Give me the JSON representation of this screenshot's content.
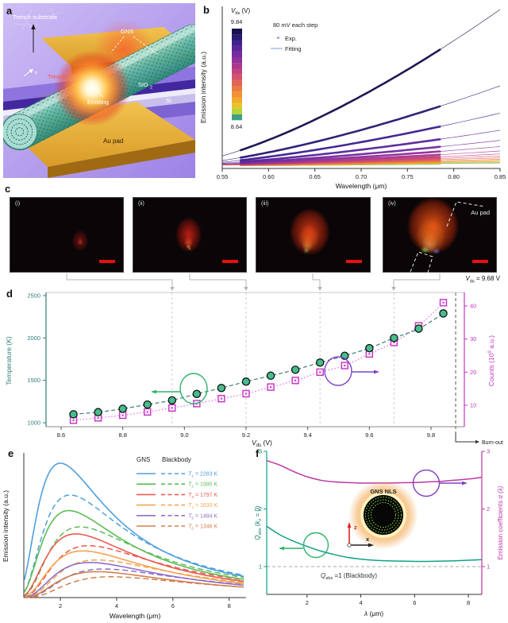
{
  "panels": {
    "a": {
      "letter": "a",
      "trench_substrate": "Trench substrate",
      "gns": "GNS",
      "y_marker": "Y",
      "trench": "Trench",
      "sio2_base": "SiO",
      "sio2_sub": "2",
      "si": "Si",
      "emitting": "Emitting",
      "au_pad": "Au pad"
    },
    "b": {
      "letter": "b",
      "ylabel": "Emission intensity (a.u.)",
      "xlabel": "Wavelength (μm)",
      "colorbar_title_v": "V",
      "colorbar_title_sub": "ds",
      "colorbar_title_rest": " (V)",
      "colorbar_top": "9.84",
      "colorbar_bottom": "8.64",
      "legend_step": "80 mV each step",
      "legend_exp": "Exp.",
      "legend_fit": "Fitting"
    },
    "c": {
      "letter": "c",
      "image_tags": [
        "(i)",
        "(ii)",
        "(iii)",
        "(iv)"
      ],
      "au_pad": "Au pad",
      "vds_v": "V",
      "vds_sub": "ds",
      "vds_rest": " = 9.68 V"
    },
    "d": {
      "letter": "d",
      "ylabel_left": "Temperature (K)",
      "ylabel_right_pre": "Counts (10",
      "ylabel_right_sup": "9",
      "ylabel_right_post": " a.u.)",
      "xlabel_v": "V",
      "xlabel_sub": "ds",
      "xlabel_rest": " (V)",
      "burn_out": "Burn-out"
    },
    "e": {
      "letter": "e",
      "ylabel": "Emission intensity (a.u.)",
      "xlabel": "Wavelength (μm)",
      "legend_gns": "GNS",
      "legend_blackbody": "Blackbody"
    },
    "f": {
      "letter": "f",
      "xlabel_lambda": "λ",
      "xlabel_rest": " (μm)",
      "ylabel_left_parts": [
        "Q",
        "abs",
        " (",
        "k",
        "z",
        " = 0)"
      ],
      "ylabel_right_pre": "Emission coefficients ",
      "ylabel_right_italic": "α (λ)",
      "inset_label": "GNS NLS",
      "axis_z": "z",
      "axis_x": "x",
      "note_q": "Q",
      "note_sub": "abs",
      "note_rest": " =1 (Blackbody)"
    }
  },
  "chart_data": [
    {
      "id": "b",
      "type": "line",
      "xlabel": "Wavelength (μm)",
      "ylabel": "Emission intensity (a.u.)",
      "xlim": [
        0.55,
        0.85
      ],
      "xticks": [
        "0.55",
        "0.60",
        "0.65",
        "0.70",
        "0.75",
        "0.80",
        "0.85"
      ],
      "voltage_step_mV": 80,
      "voltage_range_V": [
        8.64,
        9.84
      ],
      "voltages_V": [
        9.84,
        9.76,
        9.68,
        9.6,
        9.52,
        9.44,
        9.36,
        9.28,
        9.2,
        9.12,
        9.04,
        8.96,
        8.88,
        8.8,
        8.72,
        8.64
      ],
      "relative_intensity_at_0p85": [
        1.0,
        0.51,
        0.335,
        0.225,
        0.16,
        0.12,
        0.092,
        0.073,
        0.059,
        0.048,
        0.039,
        0.032,
        0.0265,
        0.022,
        0.0185,
        0.0155
      ],
      "colors": [
        "#16114f",
        "#2a1a72",
        "#3f2090",
        "#58269b",
        "#742b9e",
        "#8f3199",
        "#aa388e",
        "#c2427e",
        "#d4526b",
        "#e16457",
        "#ea7a45",
        "#f09136",
        "#f1a92c",
        "#e8c52e",
        "#b5d43c",
        "#3da087"
      ],
      "exp_range_um": [
        0.57,
        0.785
      ],
      "fit_range_um": [
        0.55,
        0.85
      ]
    },
    {
      "id": "d",
      "type": "scatter",
      "xlabel": "Vds (V)",
      "ylabel_left": "Temperature (K)",
      "ylabel_right": "Counts (10^9 a.u.)",
      "x": [
        8.64,
        8.72,
        8.8,
        8.88,
        8.96,
        9.04,
        9.12,
        9.2,
        9.28,
        9.36,
        9.44,
        9.52,
        9.6,
        9.68,
        9.76,
        9.84
      ],
      "temperature_K": [
        1100,
        1125,
        1165,
        1215,
        1265,
        1340,
        1410,
        1485,
        1555,
        1625,
        1710,
        1790,
        1880,
        2000,
        2110,
        2290
      ],
      "counts_1e9_au": [
        5.5,
        6.2,
        7.0,
        8.0,
        9.2,
        10.5,
        12.0,
        13.5,
        15.5,
        17.5,
        20.0,
        22.0,
        25.5,
        29.0,
        34.0,
        41.0
      ],
      "xticks": [
        "8.6",
        "8.8",
        "9.0",
        "9.2",
        "9.4",
        "9.6",
        "9.8"
      ],
      "yticks_left": [
        1000,
        1500,
        2000,
        2500
      ],
      "yticks_right": [
        10,
        20,
        30,
        40
      ],
      "ylim_left": [
        1000,
        2500
      ],
      "marker_lines_V": [
        8.96,
        9.2,
        9.44,
        9.68
      ],
      "burnout_V": 9.88,
      "temp_color": "#2e7d7a",
      "temp_marker_fill": "#46bd8c",
      "counts_color": "#c435c4",
      "counts_line_color": "#e06ee0"
    },
    {
      "id": "e",
      "type": "line",
      "xlabel": "Wavelength (μm)",
      "ylabel": "Emission intensity (a.u.)",
      "xticks": [
        2,
        4,
        6,
        8
      ],
      "xlim": [
        0.7,
        8.6
      ],
      "series": [
        {
          "t_sub": "1",
          "temperature": "2283 K",
          "color": "#4f9fdd",
          "solid_peak_um": 2.0,
          "solid_amp": 0.95,
          "dashed_peak_um": 2.35,
          "dashed_amp": 0.725
        },
        {
          "t_sub": "2",
          "temperature": "1995 K",
          "color": "#5cbd57",
          "solid_peak_um": 2.3,
          "solid_amp": 0.615,
          "dashed_peak_um": 2.7,
          "dashed_amp": 0.5
        },
        {
          "t_sub": "3",
          "temperature": "1797 K",
          "color": "#ea5a50",
          "solid_peak_um": 2.55,
          "solid_amp": 0.45,
          "dashed_peak_um": 3.0,
          "dashed_amp": 0.367
        },
        {
          "t_sub": "4",
          "temperature": "1633 K",
          "color": "#f2a54f",
          "solid_peak_um": 2.8,
          "solid_amp": 0.33,
          "dashed_peak_um": 3.3,
          "dashed_amp": 0.266
        },
        {
          "t_sub": "5",
          "temperature": "1484 K",
          "color": "#8f6fca",
          "solid_peak_um": 3.05,
          "solid_amp": 0.248,
          "dashed_peak_um": 3.55,
          "dashed_amp": 0.202
        },
        {
          "t_sub": "6",
          "temperature": "1346 K",
          "color": "#d1804e",
          "solid_peak_um": 3.3,
          "solid_amp": 0.183,
          "dashed_peak_um": 3.8,
          "dashed_amp": 0.147
        }
      ]
    },
    {
      "id": "f",
      "type": "line",
      "xlabel": "λ (μm)",
      "ylabel_left": "Qabs (kz = 0)",
      "ylabel_right": "Emission coefficients α (λ)",
      "xticks": [
        2,
        4,
        6,
        8
      ],
      "yticks": [
        1,
        2,
        3
      ],
      "ylim": [
        1,
        3
      ],
      "x": [
        0.5,
        1.0,
        1.5,
        2.0,
        2.5,
        3.0,
        3.5,
        4.0,
        4.5,
        5.0,
        5.5,
        6.0,
        6.5,
        7.0,
        7.5,
        8.0,
        8.5
      ],
      "q_abs": [
        1.7,
        1.55,
        1.44,
        1.35,
        1.27,
        1.21,
        1.16,
        1.13,
        1.11,
        1.1,
        1.095,
        1.09,
        1.09,
        1.095,
        1.1,
        1.11,
        1.12
      ],
      "alpha": [
        2.84,
        2.76,
        2.65,
        2.56,
        2.5,
        2.47,
        2.46,
        2.45,
        2.45,
        2.45,
        2.455,
        2.46,
        2.47,
        2.48,
        2.5,
        2.52,
        2.55
      ],
      "blackbody_line": 1,
      "q_color": "#0fa187",
      "alpha_color": "#bb37a4"
    }
  ]
}
